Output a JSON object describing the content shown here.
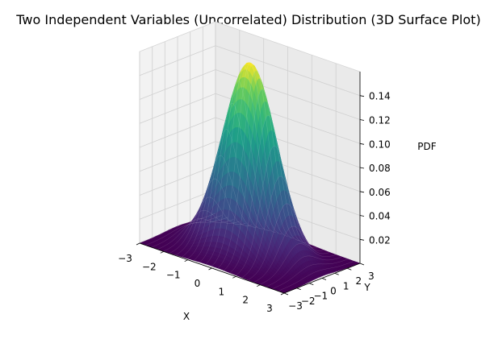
{
  "chart_data": {
    "type": "surface3d",
    "title": "Two Independent Variables (Uncorrelated) Distribution (3D Surface Plot)",
    "xlabel": "X",
    "ylabel": "Y",
    "zlabel": "PDF",
    "function": "bivariate standard normal, independent (rho = 0)",
    "xlim": [
      -3,
      3
    ],
    "ylim": [
      -3,
      3
    ],
    "zlim": [
      0,
      0.16
    ],
    "grid_points": 13,
    "x_ticks": [
      "−3",
      "−2",
      "−1",
      "0",
      "1",
      "2",
      "3"
    ],
    "y_ticks": [
      "−3",
      "−2",
      "−1",
      "0",
      "1",
      "2",
      "3"
    ],
    "z_ticks": [
      "0.02",
      "0.04",
      "0.06",
      "0.08",
      "0.10",
      "0.12",
      "0.14"
    ],
    "peak": {
      "x": 0,
      "y": 0,
      "z": 0.159
    },
    "colormap": "viridis",
    "colors": {
      "low": "#440154",
      "mid": "#21918c",
      "high": "#fde725"
    },
    "grid": true
  }
}
